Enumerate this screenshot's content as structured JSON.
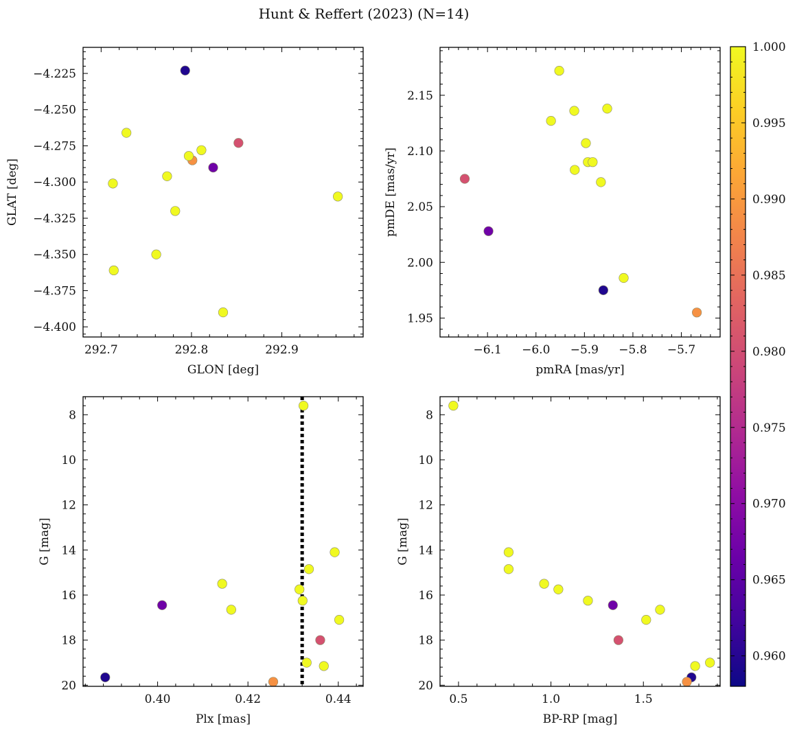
{
  "figure": {
    "title": "Hunt & Reffert (2023) (N=14)"
  },
  "colorbar": {
    "cmap": "plasma",
    "vmin": 0.958,
    "vmax": 1.0,
    "ticks": [
      0.96,
      0.965,
      0.97,
      0.975,
      0.98,
      0.985,
      0.99,
      0.995,
      1.0
    ],
    "tick_labels": [
      "0.960",
      "0.965",
      "0.970",
      "0.975",
      "0.980",
      "0.985",
      "0.990",
      "0.995",
      "1.000"
    ]
  },
  "chart_data": [
    {
      "type": "scatter",
      "xlabel": "GLON [deg]",
      "ylabel": "GLAT [deg]",
      "xlim": [
        292.68,
        292.99
      ],
      "ylim": [
        -4.407,
        -4.207
      ],
      "xticks": [
        292.7,
        292.8,
        292.9
      ],
      "xtick_labels": [
        "292.7",
        "292.8",
        "292.9"
      ],
      "yticks": [
        -4.4,
        -4.375,
        -4.35,
        -4.325,
        -4.3,
        -4.275,
        -4.25,
        -4.225
      ],
      "ytick_labels": [
        "−4.400",
        "−4.375",
        "−4.350",
        "−4.325",
        "−4.300",
        "−4.275",
        "−4.250",
        "−4.225"
      ],
      "x": [
        292.793,
        292.728,
        292.801,
        292.797,
        292.811,
        292.852,
        292.824,
        292.773,
        292.713,
        292.782,
        292.962,
        292.761,
        292.714,
        292.835
      ],
      "y": [
        -4.223,
        -4.266,
        -4.285,
        -4.282,
        -4.278,
        -4.273,
        -4.29,
        -4.296,
        -4.301,
        -4.32,
        -4.31,
        -4.35,
        -4.361,
        -4.39
      ],
      "c": [
        0.9595,
        1.0,
        0.989,
        1.0,
        1.0,
        0.9805,
        0.967,
        1.0,
        1.0,
        1.0,
        1.0,
        1.0,
        1.0,
        1.0
      ],
      "vline": null
    },
    {
      "type": "scatter",
      "xlabel": "pmRA [mas/yr]",
      "ylabel": "pmDE [mas/yr]",
      "xlim": [
        -6.198,
        -5.62
      ],
      "ylim": [
        1.933,
        2.193
      ],
      "xticks": [
        -6.1,
        -6.0,
        -5.9,
        -5.8,
        -5.7
      ],
      "xtick_labels": [
        "−6.1",
        "−6.0",
        "−5.9",
        "−5.8",
        "−5.7"
      ],
      "yticks": [
        1.95,
        2.0,
        2.05,
        2.1,
        2.15
      ],
      "ytick_labels": [
        "1.95",
        "2.00",
        "2.05",
        "2.10",
        "2.15"
      ],
      "x": [
        -5.952,
        -5.853,
        -5.921,
        -5.969,
        -5.897,
        -5.893,
        -5.883,
        -5.92,
        -6.147,
        -5.866,
        -6.098,
        -5.819,
        -5.861,
        -5.668
      ],
      "y": [
        2.172,
        2.138,
        2.136,
        2.127,
        2.107,
        2.09,
        2.09,
        2.083,
        2.075,
        2.072,
        2.028,
        1.986,
        1.975,
        1.955
      ],
      "c": [
        1.0,
        1.0,
        1.0,
        1.0,
        1.0,
        1.0,
        1.0,
        1.0,
        0.9805,
        1.0,
        0.967,
        1.0,
        0.9595,
        0.989
      ],
      "vline": null
    },
    {
      "type": "scatter",
      "xlabel": "Plx [mas]",
      "ylabel": "G [mag]",
      "xlim": [
        0.3835,
        0.4455
      ],
      "ylim": [
        20.05,
        7.2
      ],
      "xticks": [
        0.4,
        0.42,
        0.44
      ],
      "xtick_labels": [
        "0.40",
        "0.42",
        "0.44"
      ],
      "yticks": [
        8,
        10,
        12,
        14,
        16,
        18,
        20
      ],
      "ytick_labels": [
        "8",
        "10",
        "12",
        "14",
        "16",
        "18",
        "20"
      ],
      "x": [
        0.4323,
        0.4392,
        0.4335,
        0.4143,
        0.4314,
        0.4321,
        0.401,
        0.4163,
        0.4402,
        0.436,
        0.433,
        0.4368,
        0.3884,
        0.4256
      ],
      "y": [
        7.6,
        14.1,
        14.85,
        15.5,
        15.75,
        16.25,
        16.45,
        16.65,
        17.1,
        18.0,
        19.0,
        19.15,
        19.65,
        19.85
      ],
      "c": [
        1.0,
        1.0,
        1.0,
        1.0,
        1.0,
        1.0,
        0.967,
        1.0,
        1.0,
        0.9805,
        1.0,
        1.0,
        0.9595,
        0.989
      ],
      "vline": 0.432
    },
    {
      "type": "scatter",
      "xlabel": "BP-RP [mag]",
      "ylabel": "G [mag]",
      "xlim": [
        0.4,
        1.915
      ],
      "ylim": [
        20.05,
        7.2
      ],
      "xticks": [
        0.5,
        1.0,
        1.5
      ],
      "xtick_labels": [
        "0.5",
        "1.0",
        "1.5"
      ],
      "yticks": [
        8,
        10,
        12,
        14,
        16,
        18,
        20
      ],
      "ytick_labels": [
        "8",
        "10",
        "12",
        "14",
        "16",
        "18",
        "20"
      ],
      "x": [
        0.472,
        0.771,
        0.771,
        0.963,
        1.04,
        1.2,
        1.335,
        1.59,
        1.515,
        1.365,
        1.86,
        1.78,
        1.76,
        1.735
      ],
      "y": [
        7.6,
        14.1,
        14.85,
        15.5,
        15.75,
        16.25,
        16.45,
        16.65,
        17.1,
        18.0,
        19.0,
        19.15,
        19.65,
        19.85
      ],
      "c": [
        1.0,
        1.0,
        1.0,
        1.0,
        1.0,
        1.0,
        0.967,
        1.0,
        1.0,
        0.9805,
        1.0,
        1.0,
        0.9595,
        0.989
      ],
      "vline": null
    }
  ]
}
